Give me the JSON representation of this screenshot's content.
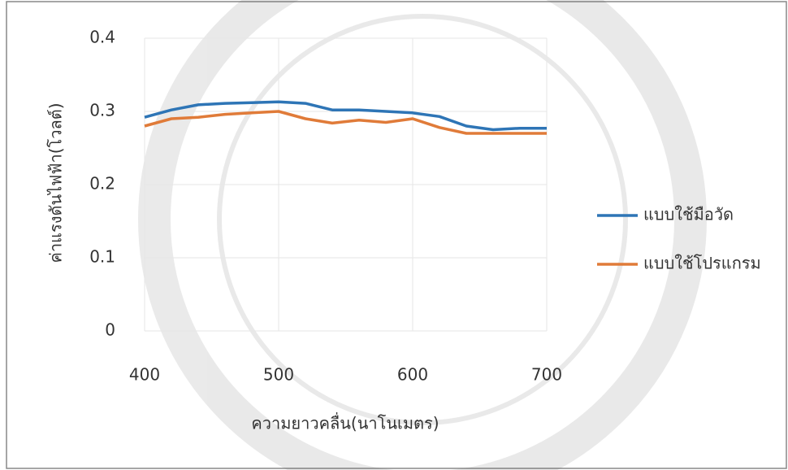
{
  "chart_data": {
    "type": "line",
    "x_label": "ความยาวคลื่น(นาโนเมตร)",
    "y_label": "ค่าแรงดันไฟฟ้า(โวลต์)",
    "x": [
      400,
      420,
      440,
      460,
      480,
      500,
      520,
      540,
      560,
      580,
      600,
      620,
      640,
      660,
      680,
      700
    ],
    "series": [
      {
        "name": "แบบใช้มือวัด",
        "color": "#2e75b6",
        "values": [
          0.292,
          0.302,
          0.309,
          0.311,
          0.312,
          0.313,
          0.311,
          0.302,
          0.302,
          0.3,
          0.298,
          0.293,
          0.28,
          0.275,
          0.277,
          0.277
        ]
      },
      {
        "name": "แบบใช้โปรแกรม",
        "color": "#e07b39",
        "values": [
          0.28,
          0.29,
          0.292,
          0.296,
          0.298,
          0.3,
          0.29,
          0.284,
          0.288,
          0.285,
          0.29,
          0.278,
          0.27,
          0.27,
          0.27,
          0.27
        ]
      }
    ],
    "xlim": [
      400,
      700
    ],
    "xticks": [
      400,
      500,
      600,
      700
    ],
    "ylim": [
      0,
      0.4
    ],
    "yticks": [
      0,
      0.1,
      0.2,
      0.3,
      0.4
    ],
    "grid": true,
    "legend": "right"
  }
}
